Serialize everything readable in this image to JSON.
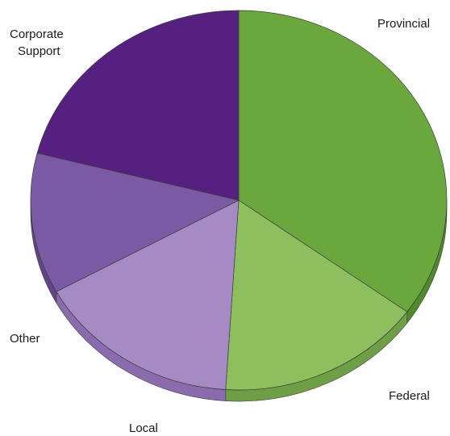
{
  "chart_data": {
    "type": "pie",
    "style": "3d-tilted",
    "title": "",
    "legend": "none",
    "slices": [
      {
        "label": "Provincial",
        "value": 35,
        "color": "#6aa83d",
        "side_color": "#4f8a2b"
      },
      {
        "label": "Federal",
        "value": 16,
        "color": "#8dbf5f",
        "side_color": "#6f9f45"
      },
      {
        "label": "Local",
        "value": 16,
        "color": "#a58ac4",
        "side_color": "#8a6cae"
      },
      {
        "label": "Other",
        "value": 12,
        "color": "#7a5aa2",
        "side_color": "#62448a"
      },
      {
        "label": "Corporate Support",
        "label_lines": [
          "Corporate",
          "Support"
        ],
        "value": 21,
        "color": "#552080",
        "side_color": "#3f1462"
      }
    ]
  }
}
